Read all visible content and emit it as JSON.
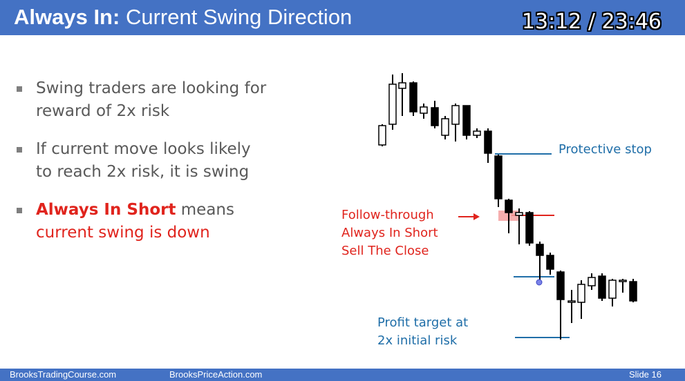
{
  "header": {
    "title_bold": "Always In:",
    "title_rest": "Current Swing Direction",
    "timer": "13:12 / 23:46"
  },
  "bullets": [
    {
      "line1": "Swing traders are looking for",
      "line2": "reward of 2x risk"
    },
    {
      "line1": "If current move looks likely",
      "line2": "to reach 2x risk, it is swing"
    },
    {
      "line1_bold": "Always In Short",
      "line1_rest": " means",
      "line2": "current swing is down"
    }
  ],
  "annotations": {
    "protective_stop": "Protective stop",
    "follow_through": [
      "Follow-through",
      "Always In Short",
      "Sell The Close"
    ],
    "profit_target": [
      "Profit target at",
      "2x initial risk"
    ]
  },
  "colors": {
    "header_bg": "#4472c4",
    "accent_red": "#e0241d",
    "annotation_blue": "#1f6ea8",
    "highlight_pink": "#f4a0a0"
  },
  "footer": {
    "left": "BrooksTradingCourse.com",
    "center": "BrooksPriceAction.com",
    "slide": "Slide  16"
  }
}
